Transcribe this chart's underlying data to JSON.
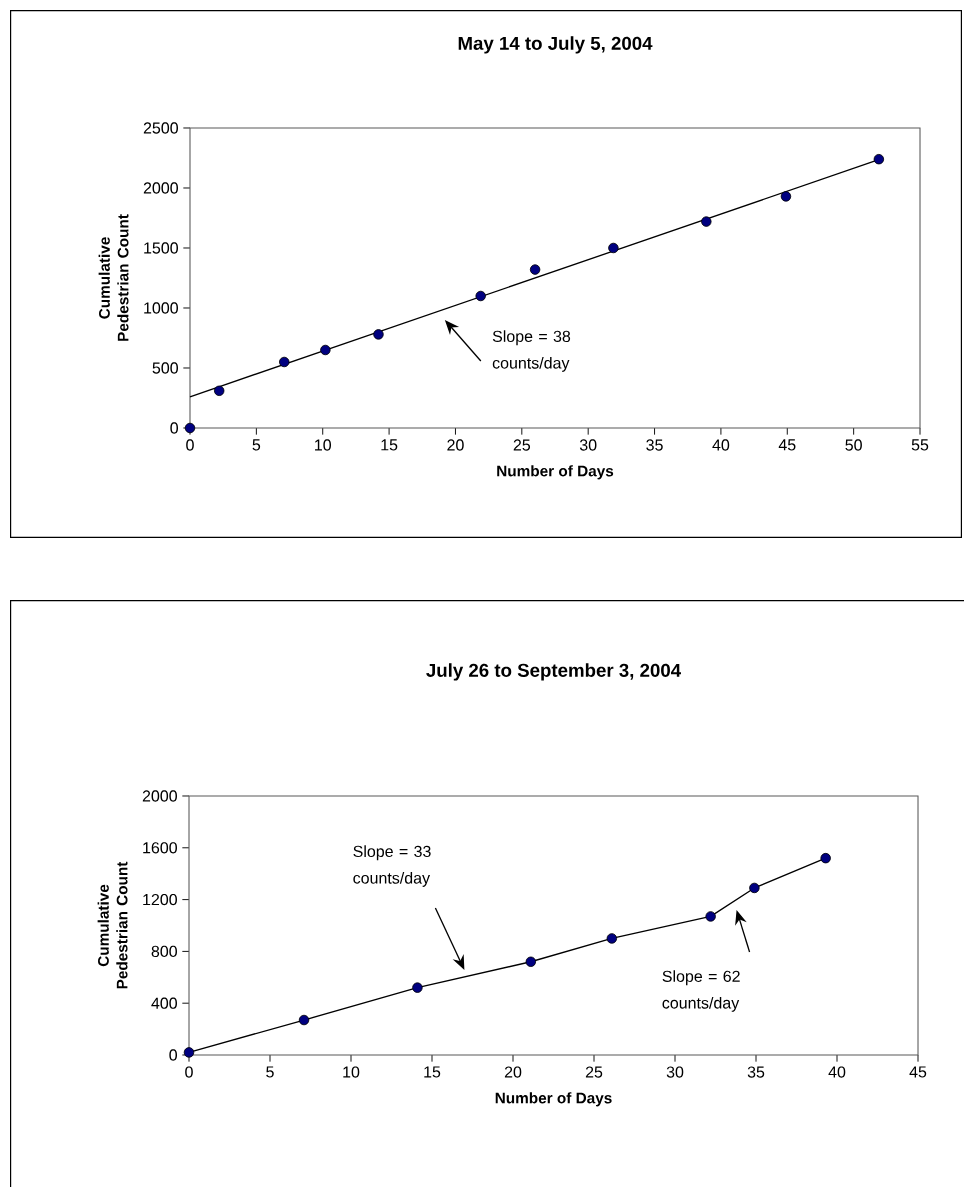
{
  "chart_data": [
    {
      "type": "scatter",
      "title": "May 14 to July 5, 2004",
      "xlabel": "Number of Days",
      "ylabel": "Cumulative Pedestrian Count",
      "series": [
        {
          "type": "scatter",
          "color": "#000080",
          "marker": "circle",
          "x": [
            0,
            2.2,
            7.1,
            10.2,
            14.2,
            21.9,
            26.0,
            31.9,
            38.9,
            44.9,
            51.9
          ],
          "values": [
            0,
            310,
            550,
            650,
            780,
            1100,
            1320,
            1500,
            1720,
            1930,
            2240
          ]
        },
        {
          "type": "line",
          "color": "#000000",
          "marker": "none",
          "x": [
            0,
            52
          ],
          "values": [
            260,
            2240
          ]
        }
      ],
      "xlim": [
        0,
        55
      ],
      "ylim": [
        0,
        2500
      ],
      "xticks": [
        0,
        5,
        10,
        15,
        20,
        25,
        30,
        35,
        40,
        45,
        50,
        55
      ],
      "yticks": [
        0,
        500,
        1000,
        1500,
        2000,
        2500
      ],
      "annotations": [
        "Slope = 38 counts/day"
      ]
    },
    {
      "type": "line",
      "title": "July 26 to September 3, 2004",
      "xlabel": "Number of Days",
      "ylabel": "Cumulative Pedestrian Count",
      "marker": "circle",
      "series": [
        {
          "color": "#000080",
          "x": [
            0,
            7.1,
            14.1,
            21.1,
            26.1,
            32.2,
            34.9,
            39.3
          ],
          "values": [
            20,
            270,
            520,
            720,
            900,
            1070,
            1290,
            1520
          ]
        }
      ],
      "xlim": [
        0,
        45
      ],
      "ylim": [
        0,
        2000
      ],
      "xticks": [
        0,
        5,
        10,
        15,
        20,
        25,
        30,
        35,
        40,
        45
      ],
      "yticks": [
        0,
        400,
        800,
        1200,
        1600,
        2000
      ],
      "annotations": [
        "Slope = 33 counts/day",
        "Slope = 62 counts/day"
      ]
    }
  ]
}
